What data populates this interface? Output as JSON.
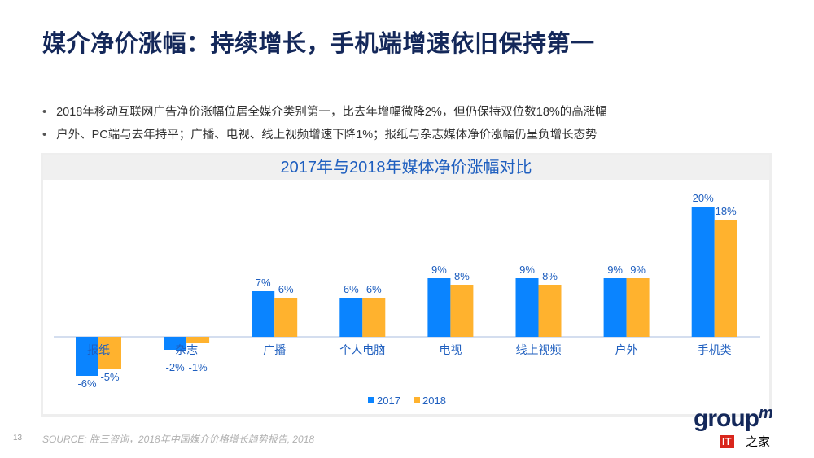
{
  "title": "媒介净价涨幅：持续增长，手机端增速依旧保持第一",
  "bullets": [
    "2018年移动互联网广告净价涨幅位居全媒介类别第一，比去年增幅微降2%，但仍保持双位数18%的高涨幅",
    "户外、PC端与去年持平；广播、电视、线上视频增速下降1%；报纸与杂志媒体净价涨幅仍呈负增长态势"
  ],
  "source": "SOURCE: 胜三咨询，2018年中国媒介价格增长趋势报告, 2018",
  "page_number": "13",
  "logo": {
    "text": "group",
    "sup": "m",
    "badge": "IT",
    "suffix": "之家"
  },
  "chart_data": {
    "type": "bar",
    "title": "2017年与2018年媒体净价涨幅对比",
    "categories": [
      "报纸",
      "杂志",
      "广播",
      "个人电脑",
      "电视",
      "线上视频",
      "户外",
      "手机类"
    ],
    "series": [
      {
        "name": "2017",
        "color": "#0a84ff",
        "values": [
          -6,
          -2,
          7,
          6,
          9,
          9,
          9,
          20
        ]
      },
      {
        "name": "2018",
        "color": "#ffb22e",
        "values": [
          -5,
          -1,
          6,
          6,
          8,
          8,
          9,
          18
        ]
      }
    ],
    "unit": "%",
    "legend": "bottom",
    "grid": false
  }
}
